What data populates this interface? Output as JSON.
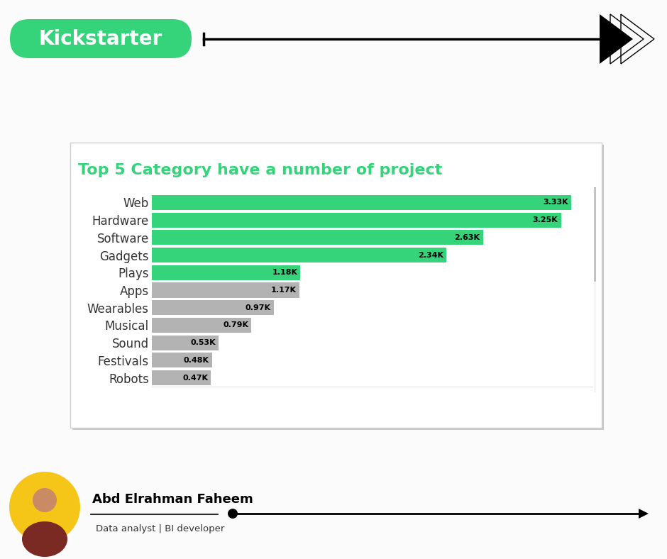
{
  "header": {
    "badge": "Kickstarter"
  },
  "chart_data": {
    "type": "bar",
    "orientation": "horizontal",
    "title": "Top 5 Category have a number of project",
    "categories": [
      "Web",
      "Hardware",
      "Software",
      "Gadgets",
      "Plays",
      "Apps",
      "Wearables",
      "Musical",
      "Sound",
      "Festivals",
      "Robots"
    ],
    "values": [
      3330,
      3250,
      2630,
      2340,
      1180,
      1170,
      970,
      790,
      530,
      480,
      470
    ],
    "value_labels": [
      "3.33K",
      "3.25K",
      "2.63K",
      "2.34K",
      "1.18K",
      "1.17K",
      "0.97K",
      "0.79K",
      "0.53K",
      "0.48K",
      "0.47K"
    ],
    "colors": [
      "#35d47a",
      "#35d47a",
      "#35d47a",
      "#35d47a",
      "#35d47a",
      "#b3b3b3",
      "#b3b3b3",
      "#b3b3b3",
      "#b3b3b3",
      "#b3b3b3",
      "#b3b3b3"
    ],
    "xlim": [
      0,
      3500
    ],
    "xticks": [],
    "data_labels": true,
    "tick_labels": "y",
    "grid": false
  },
  "footer": {
    "name": "Abd Elrahman Faheem",
    "role": "Data analyst | BI developer"
  }
}
